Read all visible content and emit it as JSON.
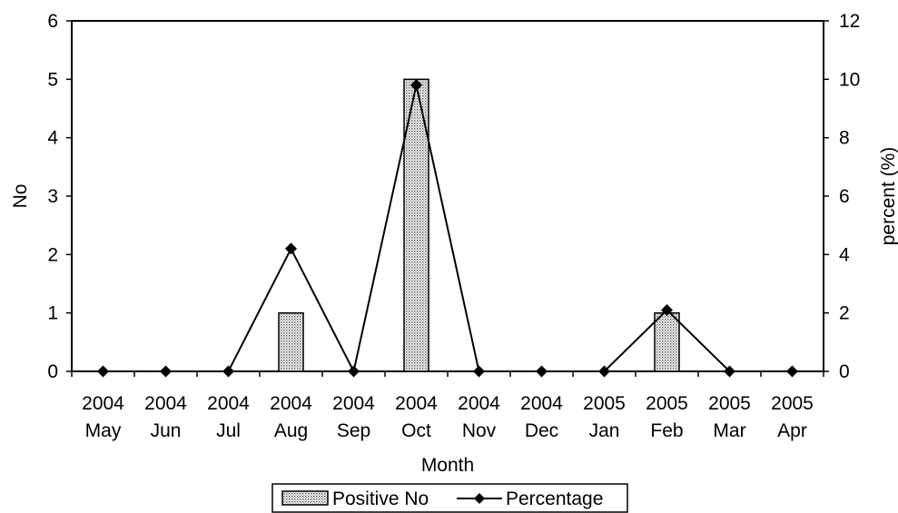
{
  "chart_data": {
    "type": "bar",
    "categories": [
      [
        "2004",
        "May"
      ],
      [
        "2004",
        "Jun"
      ],
      [
        "2004",
        "Jul"
      ],
      [
        "2004",
        "Aug"
      ],
      [
        "2004",
        "Sep"
      ],
      [
        "2004",
        "Oct"
      ],
      [
        "2004",
        "Nov"
      ],
      [
        "2004",
        "Dec"
      ],
      [
        "2005",
        "Jan"
      ],
      [
        "2005",
        "Feb"
      ],
      [
        "2005",
        "Mar"
      ],
      [
        "2005",
        "Apr"
      ]
    ],
    "series": [
      {
        "name": "Positive No",
        "type": "bar",
        "axis": "left",
        "values": [
          0,
          0,
          0,
          1,
          0,
          5,
          0,
          0,
          0,
          1,
          0,
          0
        ]
      },
      {
        "name": "Percentage",
        "type": "line",
        "axis": "right",
        "marker": "diamond",
        "values": [
          0,
          0,
          0,
          4.2,
          0,
          9.8,
          0,
          0,
          0,
          2.1,
          0,
          0
        ]
      }
    ],
    "xlabel": "Month",
    "ylabel": "No",
    "y2label": "percent (%)",
    "ylim": [
      0,
      6
    ],
    "y2lim": [
      0,
      12
    ],
    "yticks": [
      "0",
      "1",
      "2",
      "3",
      "4",
      "5",
      "6"
    ],
    "y2ticks": [
      "0",
      "2",
      "4",
      "6",
      "8",
      "10",
      "12"
    ],
    "grid": false,
    "legend": "bottom",
    "colors": {
      "bar_fill": "#d9d9d9",
      "line": "#000000"
    }
  }
}
